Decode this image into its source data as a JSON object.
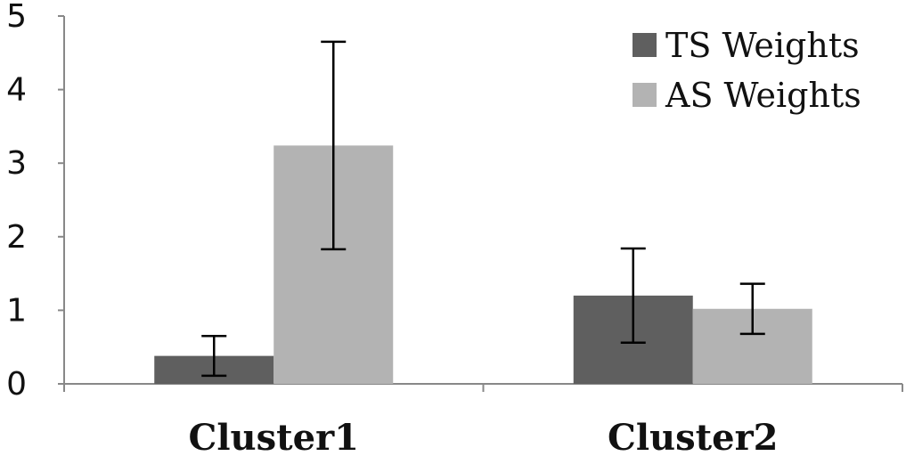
{
  "chart_data": {
    "type": "bar",
    "title": "",
    "xlabel": "",
    "ylabel": "",
    "categories": [
      "Cluster1",
      "Cluster2"
    ],
    "series": [
      {
        "name": "TS Weights",
        "color": "#5f5f5f",
        "values": [
          0.38,
          1.2
        ],
        "errors": [
          0.27,
          0.64
        ]
      },
      {
        "name": "AS Weights",
        "color": "#b3b3b3",
        "values": [
          3.24,
          1.02
        ],
        "errors": [
          1.41,
          0.34
        ]
      }
    ],
    "ylim": [
      0,
      5
    ],
    "yticks": [
      "0",
      "1",
      "2",
      "3",
      "4",
      "5"
    ],
    "grid": false,
    "legend_position": "top-right"
  }
}
